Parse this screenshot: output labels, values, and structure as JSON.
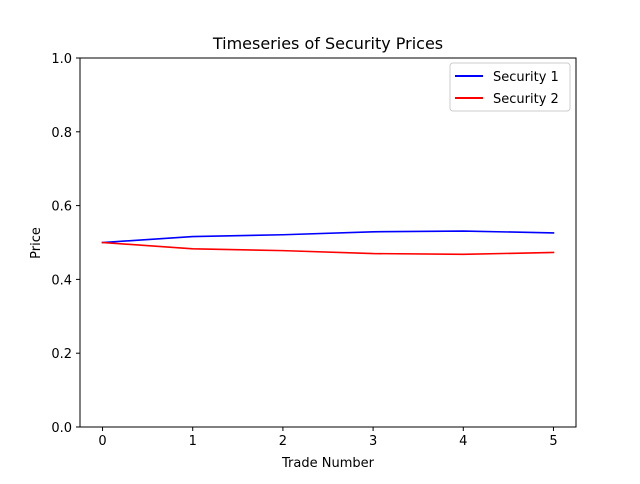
{
  "chart_data": {
    "type": "line",
    "title": "Timeseries of Security Prices",
    "xlabel": "Trade Number",
    "ylabel": "Price",
    "x": [
      0,
      1,
      2,
      3,
      4,
      5
    ],
    "xlim": [
      -0.25,
      5.25
    ],
    "ylim": [
      0.0,
      1.0
    ],
    "xticks": [
      0,
      1,
      2,
      3,
      4,
      5
    ],
    "xtick_labels": [
      "0",
      "1",
      "2",
      "3",
      "4",
      "5"
    ],
    "yticks": [
      0.0,
      0.2,
      0.4,
      0.6,
      0.8,
      1.0
    ],
    "ytick_labels": [
      "0.0",
      "0.2",
      "0.4",
      "0.6",
      "0.8",
      "1.0"
    ],
    "grid": false,
    "legend_position": "top-right",
    "series": [
      {
        "name": "Security 1",
        "color": "#0000ff",
        "values": [
          0.5,
          0.516,
          0.521,
          0.529,
          0.531,
          0.526
        ]
      },
      {
        "name": "Security 2",
        "color": "#ff0000",
        "values": [
          0.5,
          0.483,
          0.478,
          0.47,
          0.468,
          0.473
        ]
      }
    ]
  }
}
